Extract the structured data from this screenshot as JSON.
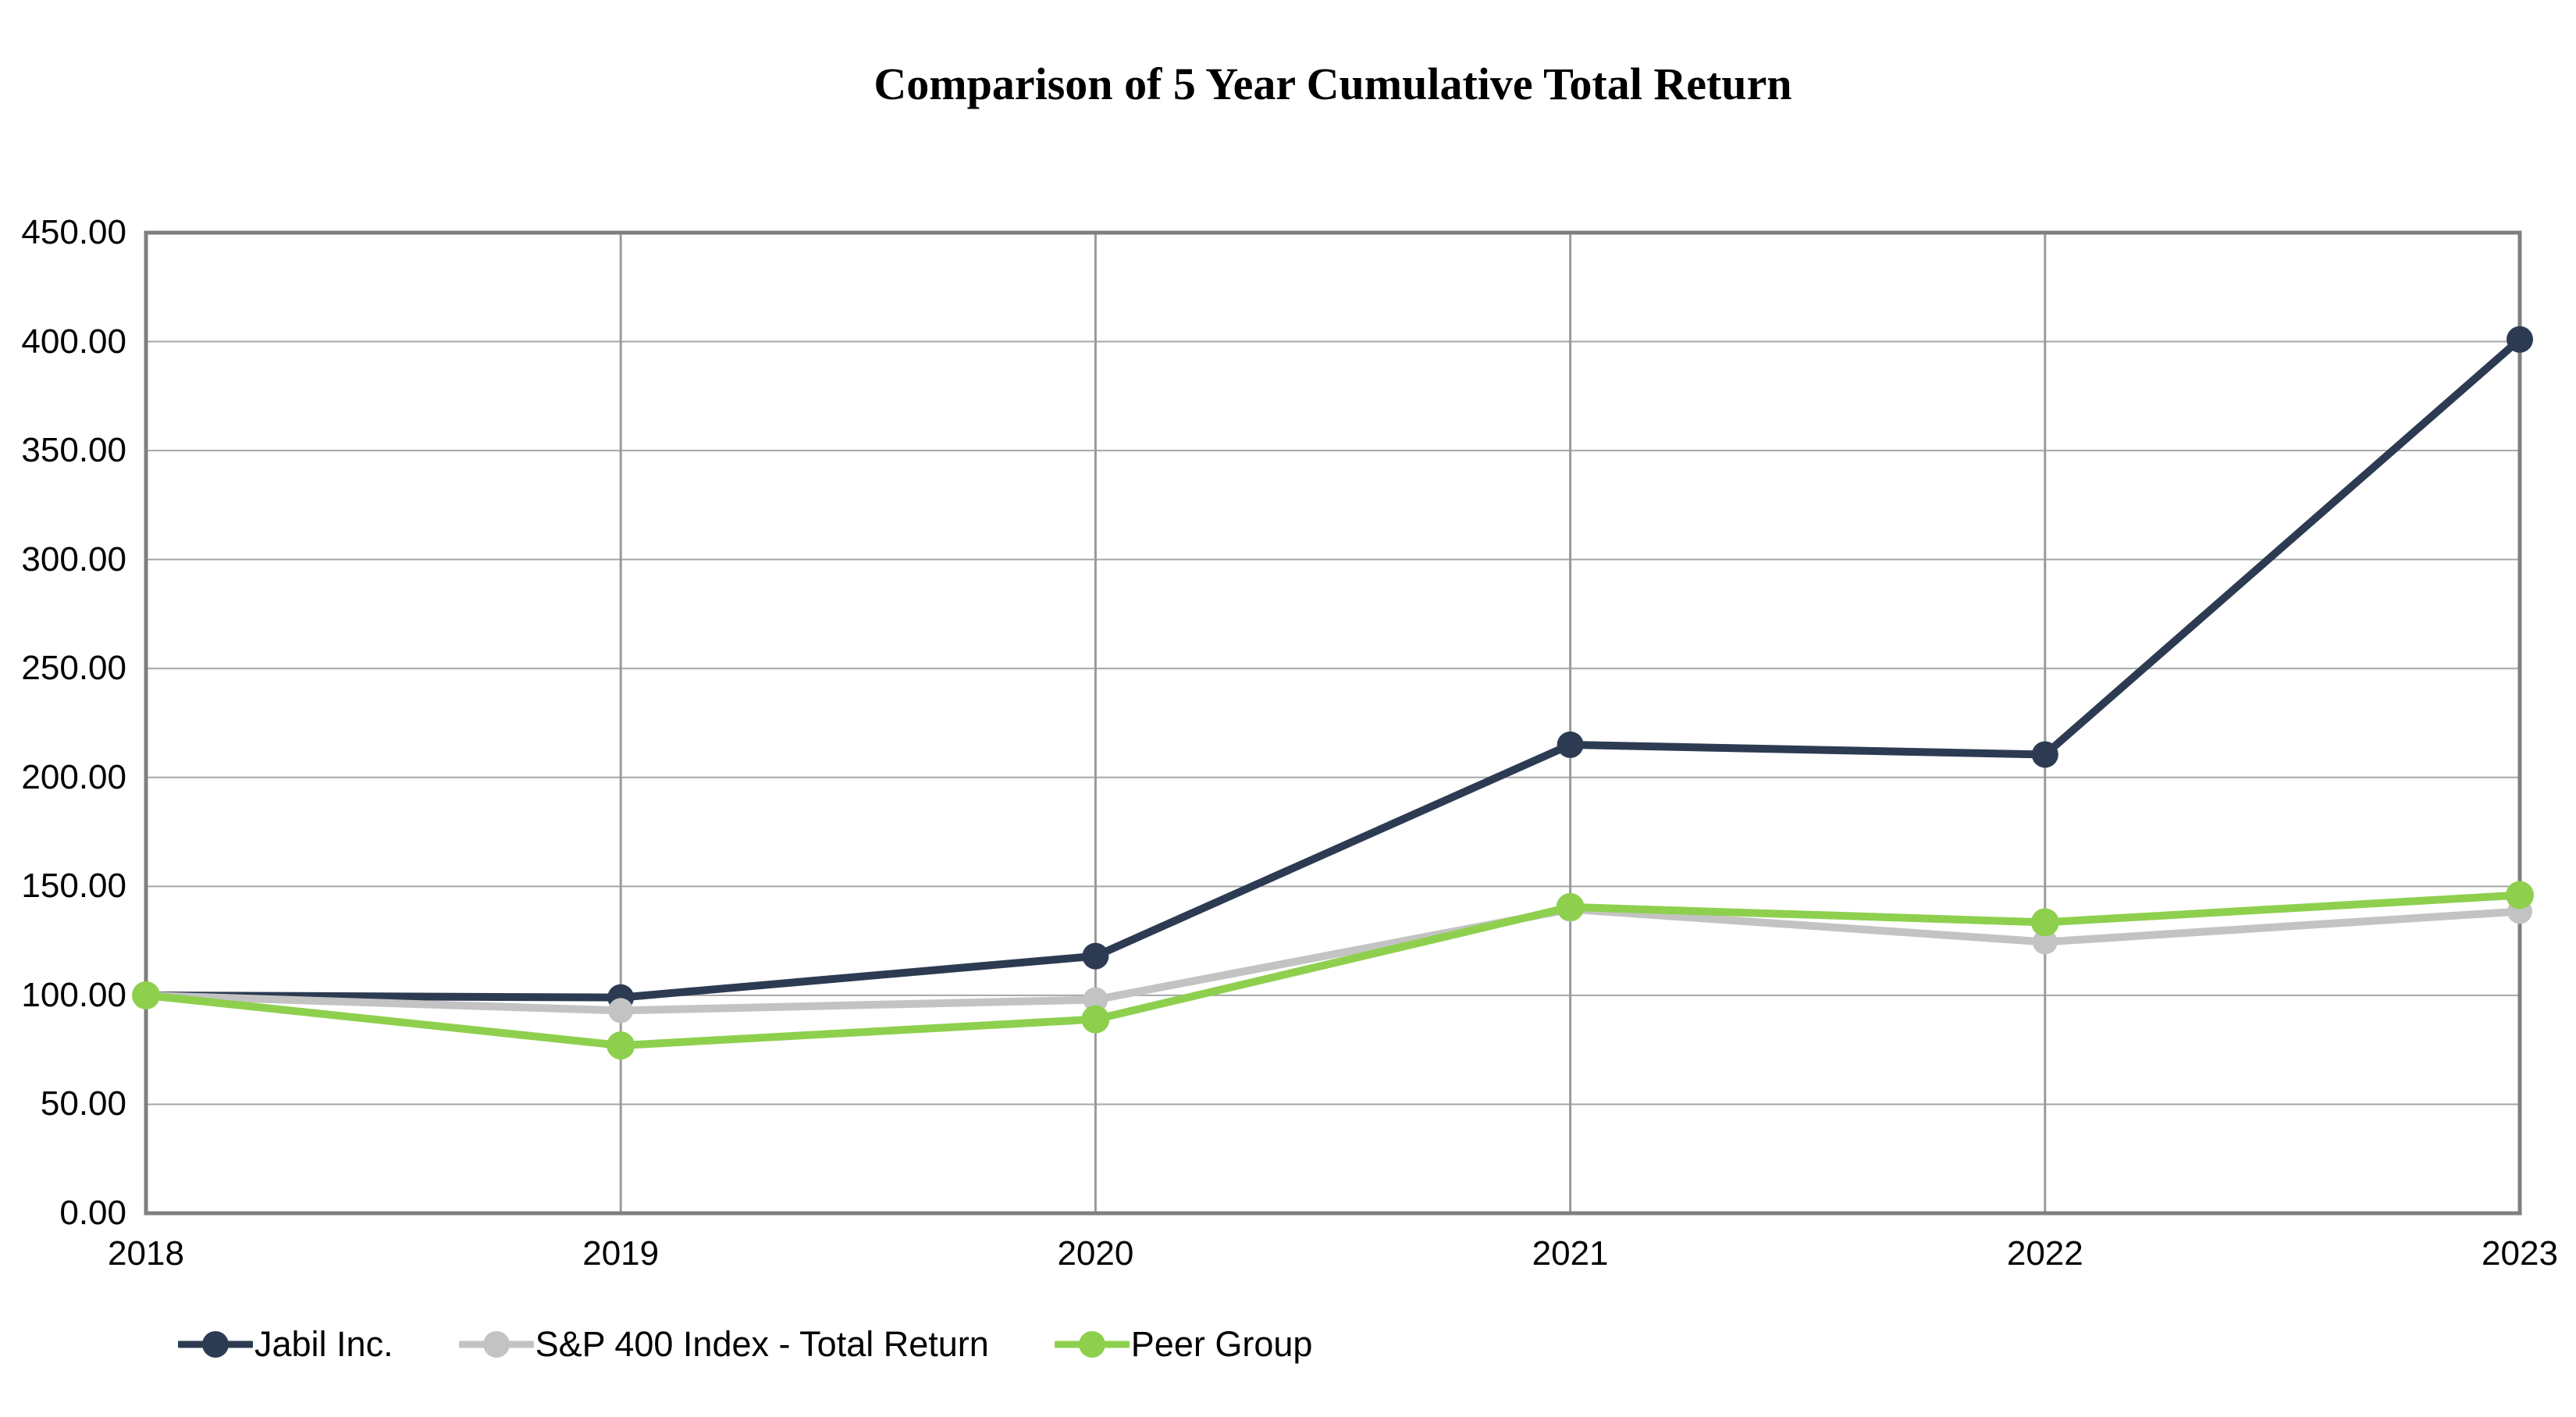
{
  "title": "Comparison of 5 Year Cumulative Total Return",
  "chart_data": {
    "type": "line",
    "title": "Comparison of 5 Year Cumulative Total Return",
    "categories": [
      "2018",
      "2019",
      "2020",
      "2021",
      "2022",
      "2023"
    ],
    "series": [
      {
        "name": "Jabil Inc.",
        "color": "#2d3b52",
        "marker_radius": 17,
        "values": [
          100,
          99,
          118,
          215,
          210.5,
          401
        ]
      },
      {
        "name": "S&P 400 Index - Total Return",
        "color": "#c3c3c3",
        "marker_radius": 16,
        "values": [
          100,
          93,
          98,
          139.5,
          124.5,
          138.5
        ]
      },
      {
        "name": "Peer Group",
        "color": "#8ed04e",
        "marker_radius": 18,
        "values": [
          100,
          77,
          89,
          140.5,
          133.5,
          146
        ]
      }
    ],
    "ylim": [
      0,
      450
    ],
    "ytick_step": 50,
    "ytick_labels": [
      "0.00",
      "50.00",
      "100.00",
      "150.00",
      "200.00",
      "250.00",
      "300.00",
      "350.00",
      "400.00",
      "450.00"
    ],
    "xlabel": "",
    "ylabel": "",
    "grid": true,
    "legend_position": "bottom-left",
    "colors": {
      "axis_border": "#7f7f7f",
      "gridline_h": "#a6a6a6",
      "gridline_v": "#9a9a9a",
      "background": "#ffffff",
      "text": "#000000"
    }
  }
}
